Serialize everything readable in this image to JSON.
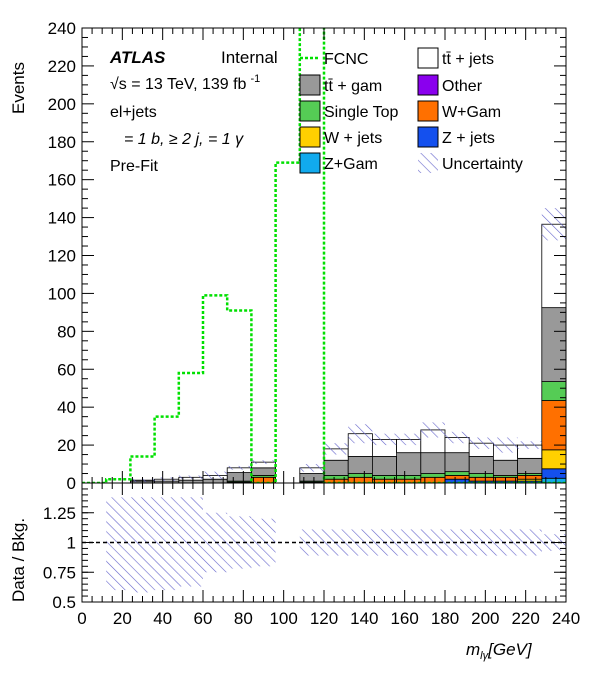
{
  "chart_data": {
    "type": "bar",
    "x_bin_edges": [
      0,
      12,
      24,
      36,
      48,
      60,
      72,
      84,
      96,
      108,
      120,
      132,
      144,
      156,
      168,
      180,
      192,
      204,
      216,
      228,
      240
    ],
    "main": {
      "ylabel": "Events",
      "ylim": [
        0,
        240
      ],
      "yticks": [
        "0",
        "20",
        "40",
        "60",
        "80",
        "100",
        "120",
        "140",
        "160",
        "180",
        "200",
        "220",
        "240"
      ],
      "stack": [
        {
          "key": "zgam",
          "name": "Z+Gam",
          "color": "#11aaee",
          "values": [
            0,
            0,
            0,
            0,
            0,
            0,
            0,
            0,
            0,
            0,
            0,
            0,
            0,
            0,
            0,
            0,
            0,
            0,
            0,
            2.5
          ]
        },
        {
          "key": "zjets",
          "name": "Z + jets",
          "color": "#1450ee",
          "values": [
            0,
            0,
            0,
            0,
            0,
            0,
            0,
            0,
            0,
            0,
            0,
            0,
            0,
            0,
            0,
            2,
            1,
            1,
            1,
            5
          ]
        },
        {
          "key": "wjets",
          "name": "W + jets",
          "color": "#ffd000",
          "values": [
            0,
            0,
            0,
            0,
            0,
            0,
            0,
            0,
            0,
            0,
            0,
            0,
            0,
            0,
            0,
            0,
            0,
            0,
            1,
            10
          ]
        },
        {
          "key": "wgam",
          "name": "W+Gam",
          "color": "#ff7000",
          "values": [
            0,
            0,
            0,
            0,
            0,
            0,
            0.5,
            3,
            0,
            0.5,
            2,
            3,
            2,
            2,
            3,
            2,
            2,
            2,
            2,
            26
          ]
        },
        {
          "key": "stop",
          "name": "Single Top",
          "color": "#55cc55",
          "values": [
            0,
            0,
            0,
            0,
            0,
            0,
            0.5,
            1,
            0,
            0.5,
            2,
            2,
            2,
            2,
            2,
            2,
            2,
            1,
            1,
            10
          ]
        },
        {
          "key": "other",
          "name": "Other",
          "color": "#8a00ee",
          "values": [
            0,
            0,
            0,
            0,
            0,
            0,
            0,
            0,
            0,
            0,
            0,
            0,
            0,
            0,
            0,
            0,
            0,
            0,
            0,
            0
          ]
        },
        {
          "key": "ttgam",
          "name": "tt̄ +  gam",
          "color": "#999999",
          "values": [
            0,
            0,
            1,
            1,
            1.5,
            2,
            4.5,
            4,
            0,
            4,
            8,
            9,
            10,
            12,
            11,
            10,
            9,
            8,
            8,
            39
          ]
        },
        {
          "key": "ttjets",
          "name": "tt̄ + jets",
          "color": "#ffffff",
          "values": [
            0,
            0,
            0.5,
            1,
            1.5,
            2,
            2.5,
            3,
            0,
            3,
            6,
            12,
            9,
            7,
            12,
            8,
            7,
            8,
            7,
            44
          ]
        }
      ],
      "fcnc": {
        "name": "FCNC",
        "color": "#00e000",
        "values": [
          0,
          2,
          14,
          35,
          58,
          99,
          91,
          0,
          169,
          245,
          0,
          0,
          0,
          0,
          0,
          0,
          0,
          0,
          0,
          0
        ]
      },
      "uncertainty_name": "Uncertainty",
      "uncertainty_up": [
        0,
        0,
        2.5,
        3,
        4,
        6,
        9,
        12,
        0,
        10,
        21,
        31,
        26,
        26,
        32,
        27,
        24,
        24,
        22,
        145
      ]
    },
    "ratio": {
      "ylabel": "Data / Bkg.",
      "ylim": [
        0.5,
        1.5
      ],
      "yticks": [
        "0.5",
        "0.75",
        "1",
        "1.25"
      ],
      "ref_line": 1,
      "band": [
        [
          1,
          1
        ],
        [
          0.6,
          1.38
        ],
        [
          0.58,
          1.38
        ],
        [
          0.6,
          1.38
        ],
        [
          0.63,
          1.38
        ],
        [
          0.75,
          1.25
        ],
        [
          0.78,
          1.22
        ],
        [
          0.8,
          1.2
        ],
        [
          1,
          1
        ],
        [
          0.89,
          1.11
        ],
        [
          0.89,
          1.11
        ],
        [
          0.89,
          1.11
        ],
        [
          0.89,
          1.11
        ],
        [
          0.89,
          1.11
        ],
        [
          0.89,
          1.11
        ],
        [
          0.89,
          1.11
        ],
        [
          0.89,
          1.11
        ],
        [
          0.89,
          1.11
        ],
        [
          0.89,
          1.11
        ],
        [
          0.93,
          1.07
        ]
      ]
    },
    "xlabel": "m_{lγ}[GeV]",
    "xlabel_parts": {
      "main": "m",
      "sub": "lγ",
      "unit": "[GeV]"
    },
    "xticks": [
      "0",
      "20",
      "40",
      "60",
      "80",
      "100",
      "120",
      "140",
      "160",
      "180",
      "200",
      "220",
      "240"
    ],
    "xlim": [
      0,
      240
    ]
  },
  "labels": {
    "atlas": "ATLAS",
    "internal": "Internal",
    "energy_pre": "√s = 13 TeV, 139 fb",
    "energy_sup": "-1",
    "channel": "el+jets",
    "selection_line": "= 1 b, ≥ 2 j, = 1 γ",
    "stage": "Pre-Fit"
  }
}
